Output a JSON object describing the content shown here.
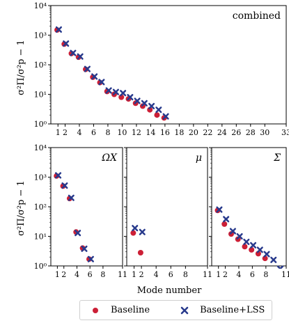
{
  "colors": {
    "baseline": "#cc1f36",
    "lss": "#283a8c"
  },
  "xlabel": "Mode number",
  "ylabel": "σ²Π/σ²p − 1",
  "legend": {
    "baseline_label": "Baseline",
    "lss_label": "Baseline+LSS"
  },
  "chart_data": [
    {
      "type": "scatter",
      "panel": "combined",
      "label": "combined",
      "ylog": true,
      "ylim": [
        1,
        10000
      ],
      "xlim": [
        0,
        33
      ],
      "xticks": [
        "1",
        "2",
        "4",
        "6",
        "8",
        "10",
        "12",
        "14",
        "16",
        "18",
        "20",
        "22",
        "24",
        "26",
        "28",
        "30",
        "33"
      ],
      "yticks": [
        "10⁰",
        "10¹",
        "10²",
        "10³",
        "10⁴"
      ],
      "series": [
        {
          "name": "Baseline",
          "marker": "dot",
          "x": [
            1,
            2,
            3,
            4,
            5,
            6,
            7,
            8,
            9,
            10,
            11,
            12,
            13,
            14,
            15,
            16
          ],
          "y": [
            1500,
            500,
            240,
            180,
            70,
            38,
            25,
            12.5,
            10,
            8,
            7,
            5,
            4,
            3,
            2,
            1.6
          ]
        },
        {
          "name": "Baseline+LSS",
          "marker": "x",
          "x": [
            1,
            2,
            3,
            4,
            5,
            6,
            7,
            8,
            9,
            10,
            11,
            12,
            13,
            14,
            15,
            16
          ],
          "y": [
            1550,
            520,
            250,
            190,
            72,
            40,
            26,
            13.5,
            12,
            11,
            8,
            6,
            5,
            4,
            3,
            1.8
          ]
        }
      ]
    },
    {
      "type": "scatter",
      "panel": "omega",
      "label": "ΩX",
      "ylog": true,
      "ylim": [
        1,
        10000
      ],
      "xlim": [
        0,
        11
      ],
      "xticks": [
        "1",
        "2",
        "4",
        "6",
        "8",
        "11"
      ],
      "yticks": [
        "10⁰",
        "10¹",
        "10²",
        "10³",
        "10⁴"
      ],
      "series": [
        {
          "name": "Baseline",
          "marker": "dot",
          "x": [
            1,
            2,
            3,
            4,
            5,
            6
          ],
          "y": [
            1100,
            500,
            190,
            14,
            4,
            1.7
          ]
        },
        {
          "name": "Baseline+LSS",
          "marker": "x",
          "x": [
            1,
            2,
            3,
            4,
            5,
            6
          ],
          "y": [
            1150,
            520,
            200,
            13,
            3.8,
            1.7
          ]
        }
      ]
    },
    {
      "type": "scatter",
      "panel": "mu",
      "label": "μ",
      "ylog": true,
      "ylim": [
        1,
        10000
      ],
      "xlim": [
        0,
        11
      ],
      "xticks": [
        "1",
        "2",
        "4",
        "6",
        "8",
        "11"
      ],
      "yticks": [],
      "series": [
        {
          "name": "Baseline",
          "marker": "dot",
          "x": [
            1,
            2
          ],
          "y": [
            13,
            2.8
          ]
        },
        {
          "name": "Baseline+LSS",
          "marker": "x",
          "x": [
            1,
            2
          ],
          "y": [
            19,
            14
          ]
        }
      ]
    },
    {
      "type": "scatter",
      "panel": "sigma",
      "label": "Σ",
      "ylog": true,
      "ylim": [
        1,
        10000
      ],
      "xlim": [
        0,
        11
      ],
      "xticks": [
        "1",
        "2",
        "4",
        "6",
        "8",
        "11"
      ],
      "yticks": [],
      "series": [
        {
          "name": "Baseline",
          "marker": "dot",
          "x": [
            1,
            2,
            3,
            4,
            5,
            6,
            7,
            8
          ],
          "y": [
            75,
            26,
            12,
            8,
            4.5,
            3.5,
            2.6,
            1.8
          ]
        },
        {
          "name": "Baseline+LSS",
          "marker": "x",
          "x": [
            1,
            2,
            3,
            4,
            5,
            6,
            7,
            8,
            9,
            10
          ],
          "y": [
            80,
            38,
            15,
            10,
            6.5,
            5,
            3.5,
            2.5,
            1.6,
            0.8
          ]
        }
      ]
    }
  ]
}
